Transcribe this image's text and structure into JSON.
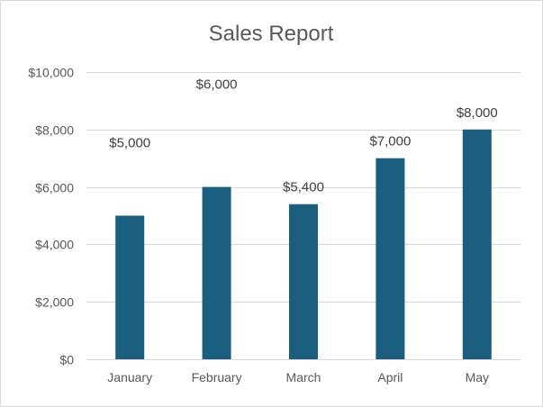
{
  "chart_data": {
    "type": "bar",
    "title": "Sales Report",
    "categories": [
      "January",
      "February",
      "March",
      "April",
      "May"
    ],
    "values": [
      5000,
      6000,
      5400,
      7000,
      8000
    ],
    "data_labels": [
      "$5,000",
      "$6,000",
      "$5,400",
      "$7,000",
      "$8,000"
    ],
    "y_ticks": [
      0,
      2000,
      4000,
      6000,
      8000,
      10000
    ],
    "y_tick_labels": [
      "$0",
      "$2,000",
      "$4,000",
      "$6,000",
      "$8,000",
      "$10,000"
    ],
    "ylim": [
      0,
      10000
    ],
    "grid": true,
    "legend": "none",
    "bar_color": "#1a5e80"
  }
}
